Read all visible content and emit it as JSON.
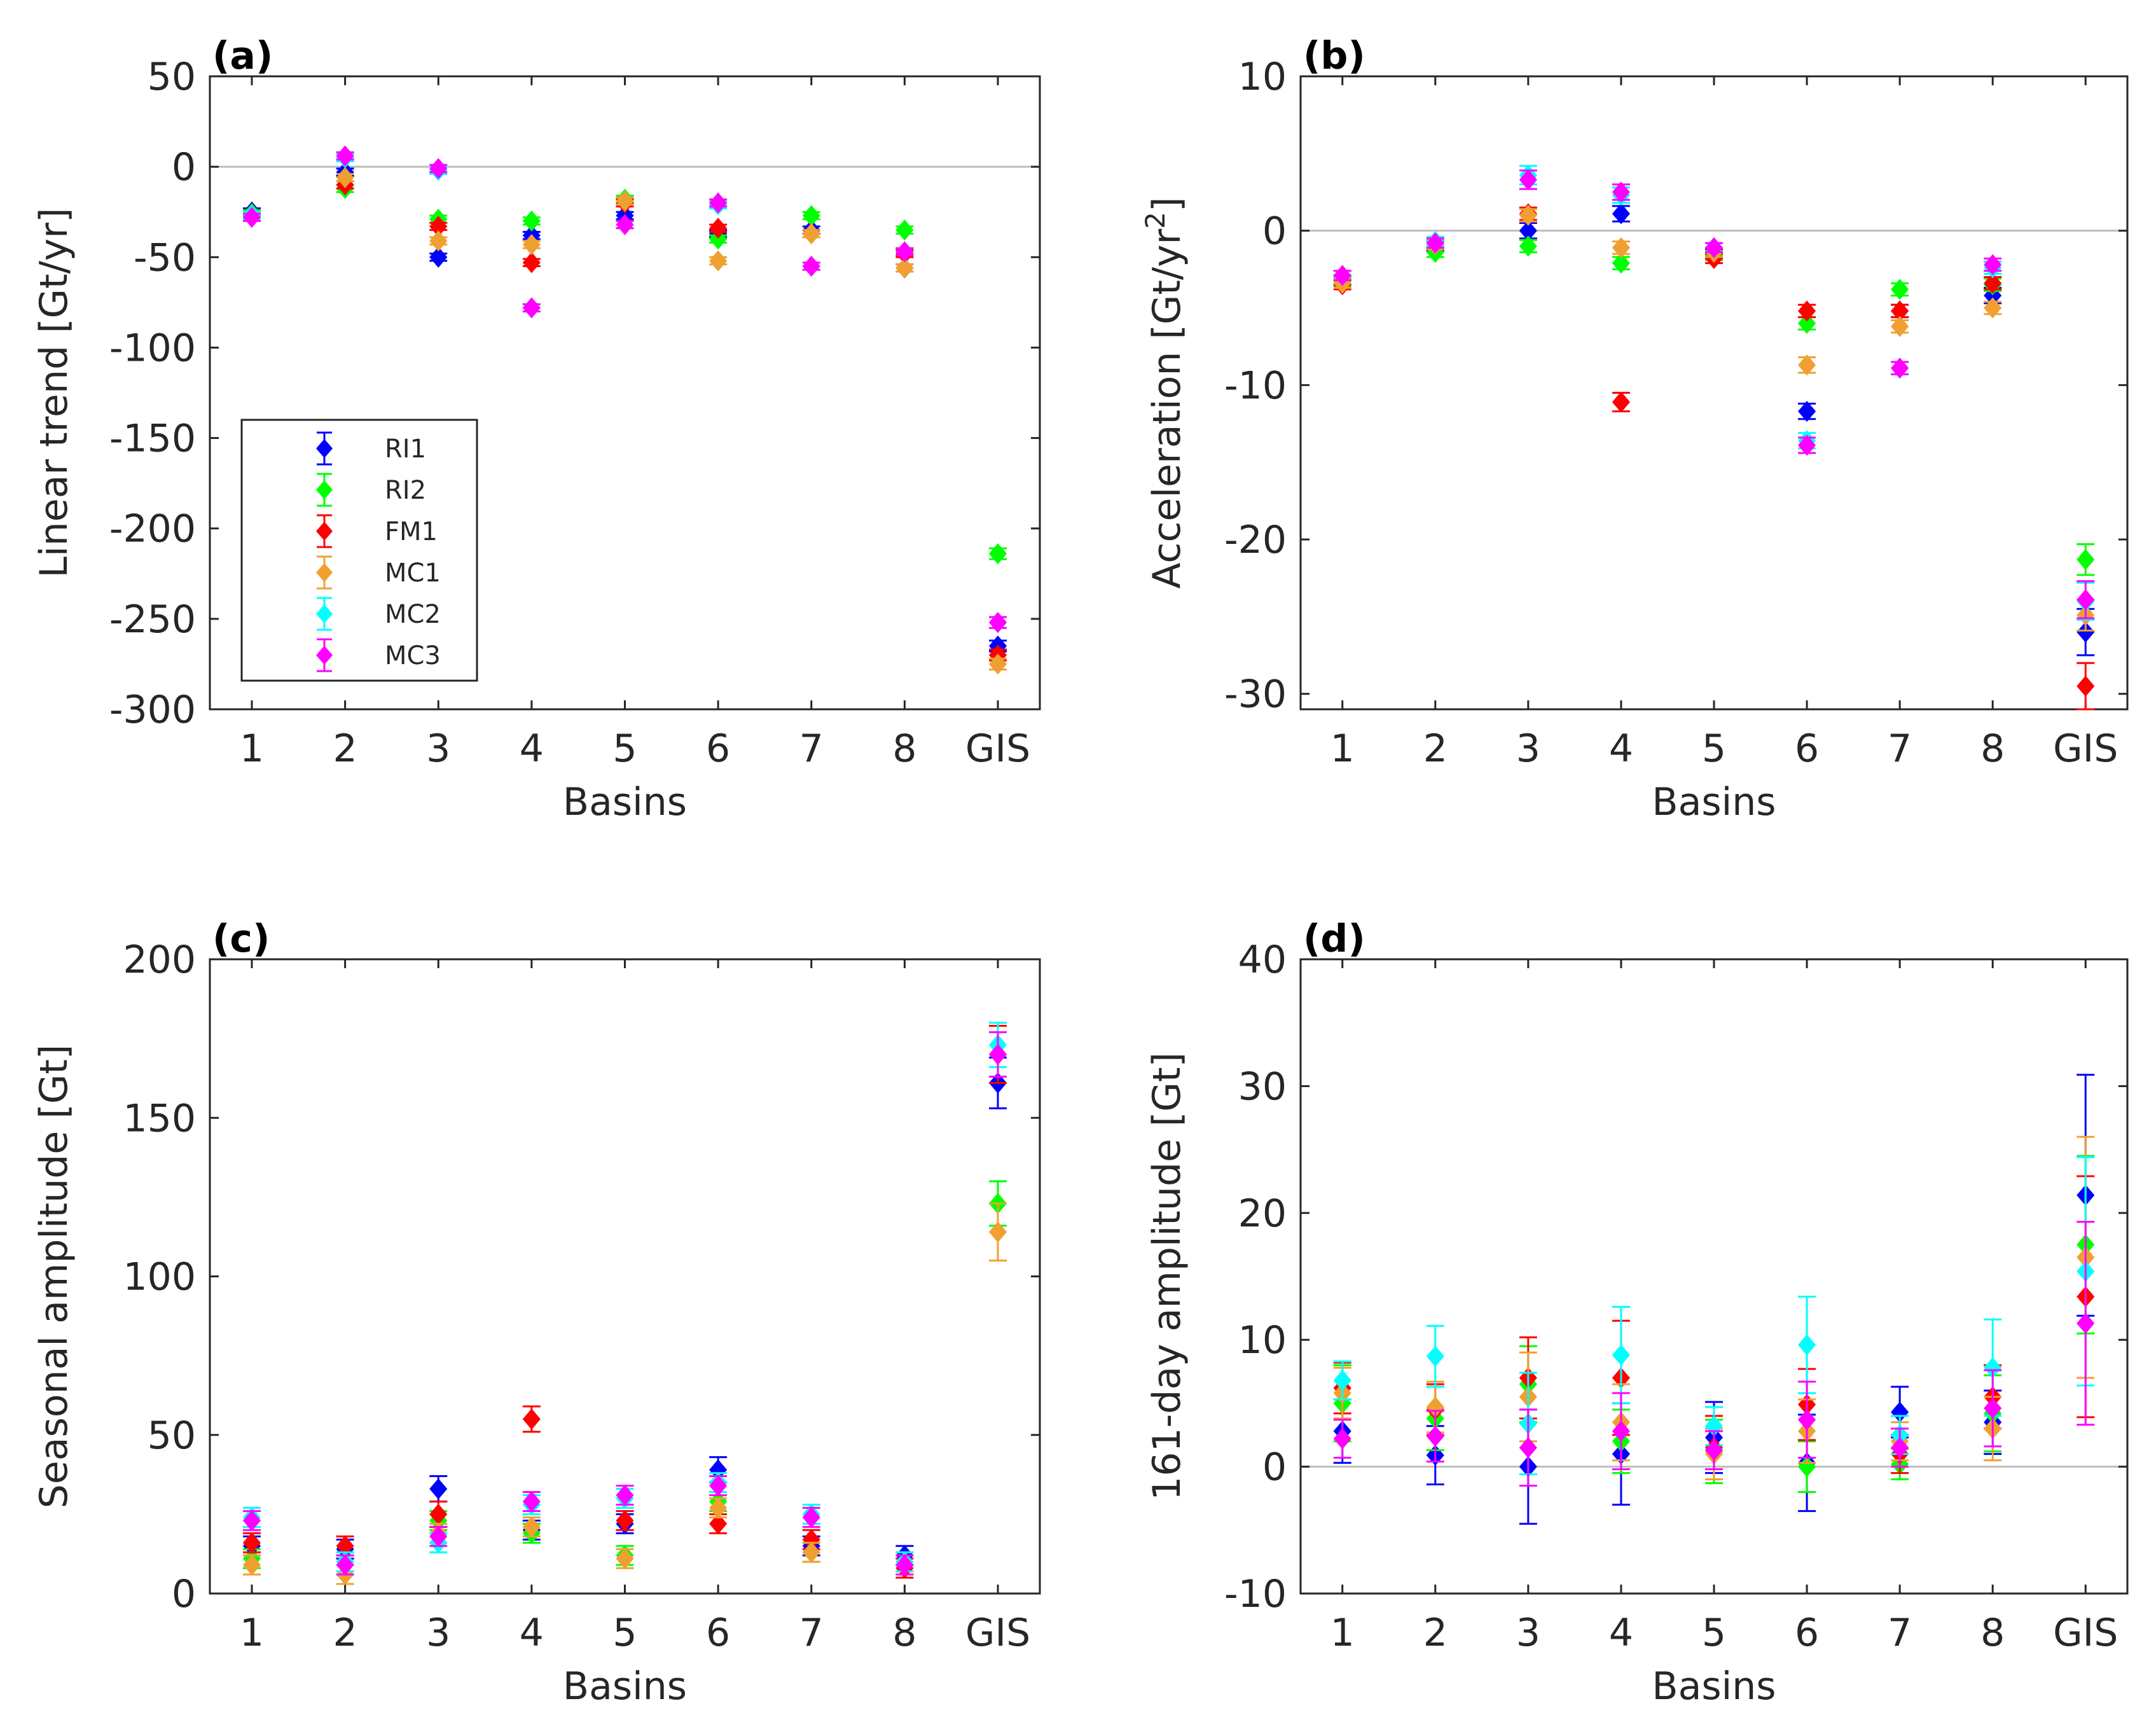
{
  "chart_data": [
    {
      "type": "scatter",
      "panel_label": "(a)",
      "title": "",
      "xlabel": "Basins",
      "ylabel": "Linear trend [Gt/yr]",
      "ylabel_sup": "",
      "categories": [
        "1",
        "2",
        "3",
        "4",
        "5",
        "6",
        "7",
        "8",
        "GIS"
      ],
      "ylim": [
        -300,
        50
      ],
      "yticks": [
        50,
        0,
        -50,
        -100,
        -150,
        -200,
        -250,
        -300
      ],
      "zero_line": true,
      "legend": {
        "placement": "lower-left",
        "entries": [
          "RI1",
          "RI2",
          "FM1",
          "MC1",
          "MC2",
          "MC3"
        ]
      },
      "series": [
        {
          "name": "RI1",
          "color": "#0000ff",
          "values": [
            -25,
            -3,
            -50,
            -38,
            -27,
            -37,
            -35,
            -56,
            -265
          ],
          "errors": [
            2,
            2,
            2,
            2,
            2,
            2,
            2,
            2,
            3
          ]
        },
        {
          "name": "RI2",
          "color": "#00ff00",
          "values": [
            -26,
            -12,
            -29,
            -30,
            -18,
            -40,
            -27,
            -35,
            -214
          ],
          "errors": [
            2,
            2,
            2,
            2,
            2,
            2,
            2,
            2,
            3
          ]
        },
        {
          "name": "FM1",
          "color": "#ff0000",
          "values": [
            -27,
            -10,
            -33,
            -53,
            -20,
            -34,
            -37,
            -48,
            -270
          ],
          "errors": [
            2,
            2,
            2,
            2,
            2,
            2,
            2,
            2,
            3
          ]
        },
        {
          "name": "MC1",
          "color": "#f0a030",
          "values": [
            -27,
            -6,
            -41,
            -43,
            -19,
            -52,
            -37,
            -56,
            -275
          ],
          "errors": [
            2,
            2,
            2,
            2,
            2,
            2,
            2,
            2,
            3
          ]
        },
        {
          "name": "MC2",
          "color": "#00ffff",
          "values": [
            -27,
            5,
            -2,
            -78,
            -32,
            -21,
            -55,
            -47,
            -252
          ],
          "errors": [
            2,
            2,
            2,
            2,
            2,
            2,
            2,
            2,
            3
          ]
        },
        {
          "name": "MC3",
          "color": "#ff00ff",
          "values": [
            -28,
            6,
            -1,
            -78,
            -32,
            -20,
            -55,
            -47,
            -252
          ],
          "errors": [
            2,
            2,
            2,
            2,
            2,
            2,
            2,
            2,
            3
          ]
        }
      ]
    },
    {
      "type": "scatter",
      "panel_label": "(b)",
      "title": "",
      "xlabel": "Basins",
      "ylabel": "Acceleration [Gt/yr",
      "ylabel_sup": "2",
      "ylabel_close": "]",
      "categories": [
        "1",
        "2",
        "3",
        "4",
        "5",
        "6",
        "7",
        "8",
        "GIS"
      ],
      "ylim": [
        -31,
        10
      ],
      "yticks": [
        10,
        0,
        -10,
        -20,
        -30
      ],
      "zero_line": true,
      "legend": null,
      "series": [
        {
          "name": "RI1",
          "color": "#0000ff",
          "values": [
            -3.2,
            -1.0,
            0.0,
            1.1,
            -1.5,
            -11.7,
            -5.2,
            -4.2,
            -26.0
          ],
          "errors": [
            0.3,
            0.3,
            0.5,
            0.5,
            0.3,
            0.5,
            0.4,
            0.5,
            1.5
          ]
        },
        {
          "name": "RI2",
          "color": "#00ff00",
          "values": [
            -3.3,
            -1.4,
            -1.0,
            -2.1,
            -1.6,
            -6.0,
            -3.8,
            -3.5,
            -21.3
          ],
          "errors": [
            0.3,
            0.3,
            0.4,
            0.4,
            0.3,
            0.4,
            0.4,
            0.4,
            1.0
          ]
        },
        {
          "name": "FM1",
          "color": "#ff0000",
          "values": [
            -3.5,
            -0.9,
            1.1,
            -11.1,
            -1.8,
            -5.2,
            -5.2,
            -3.4,
            -29.5
          ],
          "errors": [
            0.3,
            0.3,
            0.4,
            0.6,
            0.3,
            0.4,
            0.4,
            0.4,
            1.5
          ]
        },
        {
          "name": "MC1",
          "color": "#f0a030",
          "values": [
            -3.4,
            -0.9,
            1.0,
            -1.1,
            -1.4,
            -8.7,
            -6.2,
            -5.0,
            -24.9
          ],
          "errors": [
            0.3,
            0.3,
            0.4,
            0.4,
            0.3,
            0.5,
            0.4,
            0.4,
            1.0
          ]
        },
        {
          "name": "MC2",
          "color": "#00ffff",
          "values": [
            -2.9,
            -0.7,
            3.6,
            2.3,
            -1.1,
            -13.6,
            -8.9,
            -2.4,
            -24.0
          ],
          "errors": [
            0.3,
            0.3,
            0.6,
            0.5,
            0.3,
            0.5,
            0.4,
            0.4,
            1.2
          ]
        },
        {
          "name": "MC3",
          "color": "#ff00ff",
          "values": [
            -2.9,
            -0.8,
            3.3,
            2.5,
            -1.1,
            -13.9,
            -8.9,
            -2.2,
            -23.9
          ],
          "errors": [
            0.3,
            0.3,
            0.6,
            0.5,
            0.3,
            0.5,
            0.4,
            0.4,
            1.2
          ]
        }
      ]
    },
    {
      "type": "scatter",
      "panel_label": "(c)",
      "title": "",
      "xlabel": "Basins",
      "ylabel": "Seasonal amplitude [Gt]",
      "ylabel_sup": "",
      "categories": [
        "1",
        "2",
        "3",
        "4",
        "5",
        "6",
        "7",
        "8",
        "GIS"
      ],
      "ylim": [
        0,
        200
      ],
      "yticks": [
        200,
        150,
        100,
        50,
        0
      ],
      "zero_line": false,
      "legend": null,
      "series": [
        {
          "name": "RI1",
          "color": "#0000ff",
          "values": [
            15,
            14,
            33,
            20,
            22,
            39,
            15,
            12,
            161
          ],
          "errors": [
            3,
            3,
            4,
            3,
            3,
            4,
            3,
            3,
            8
          ]
        },
        {
          "name": "RI2",
          "color": "#00ff00",
          "values": [
            11,
            10,
            23,
            19,
            12,
            29,
            13,
            10,
            123
          ],
          "errors": [
            3,
            3,
            3,
            3,
            3,
            3,
            3,
            3,
            7
          ]
        },
        {
          "name": "FM1",
          "color": "#ff0000",
          "values": [
            16,
            15,
            25,
            55,
            23,
            22,
            17,
            8,
            170
          ],
          "errors": [
            3,
            3,
            4,
            4,
            3,
            3,
            3,
            3,
            9
          ]
        },
        {
          "name": "MC1",
          "color": "#f0a030",
          "values": [
            9,
            6,
            19,
            21,
            11,
            27,
            13,
            9,
            114
          ],
          "errors": [
            3,
            3,
            3,
            3,
            3,
            3,
            3,
            3,
            9
          ]
        },
        {
          "name": "MC2",
          "color": "#00ffff",
          "values": [
            24,
            10,
            16,
            28,
            30,
            35,
            25,
            10,
            173
          ],
          "errors": [
            3,
            3,
            3,
            3,
            3,
            3,
            3,
            3,
            7
          ]
        },
        {
          "name": "MC3",
          "color": "#ff00ff",
          "values": [
            23,
            9,
            18,
            29,
            31,
            34,
            24,
            9,
            170
          ],
          "errors": [
            3,
            3,
            3,
            3,
            3,
            3,
            3,
            3,
            7
          ]
        }
      ]
    },
    {
      "type": "scatter",
      "panel_label": "(d)",
      "title": "",
      "xlabel": "Basins",
      "ylabel": "161-day amplitude [Gt]",
      "ylabel_sup": "",
      "categories": [
        "1",
        "2",
        "3",
        "4",
        "5",
        "6",
        "7",
        "8",
        "GIS"
      ],
      "ylim": [
        -10,
        40
      ],
      "yticks": [
        40,
        30,
        20,
        10,
        0,
        -10
      ],
      "zero_line": true,
      "legend": null,
      "series": [
        {
          "name": "RI1",
          "color": "#0000ff",
          "values": [
            2.8,
            0.9,
            0.0,
            1.0,
            2.3,
            0.3,
            4.3,
            3.5,
            21.4
          ],
          "errors": [
            2.5,
            2.3,
            4.5,
            4.0,
            2.8,
            3.8,
            2.0,
            2.5,
            9.5
          ]
        },
        {
          "name": "RI2",
          "color": "#00ff00",
          "values": [
            5.0,
            3.8,
            6.5,
            2.0,
            1.2,
            0.0,
            0.2,
            4.2,
            17.5
          ],
          "errors": [
            3.0,
            2.5,
            3.0,
            2.5,
            2.5,
            2.0,
            1.2,
            3.0,
            7.0
          ]
        },
        {
          "name": "FM1",
          "color": "#ff0000",
          "values": [
            6.2,
            4.5,
            7.0,
            7.0,
            1.5,
            4.9,
            1.0,
            5.5,
            13.4
          ],
          "errors": [
            2.0,
            2.0,
            3.2,
            4.5,
            2.5,
            2.8,
            1.5,
            2.5,
            9.5
          ]
        },
        {
          "name": "MC1",
          "color": "#f0a030",
          "values": [
            5.8,
            4.7,
            5.5,
            3.5,
            1.0,
            2.8,
            2.0,
            3.0,
            16.5
          ],
          "errors": [
            2.0,
            2.0,
            3.5,
            3.0,
            2.0,
            2.5,
            1.5,
            2.5,
            9.5
          ]
        },
        {
          "name": "MC2",
          "color": "#00ffff",
          "values": [
            6.8,
            8.7,
            3.4,
            8.8,
            3.2,
            9.6,
            2.5,
            7.8,
            15.4
          ],
          "errors": [
            1.5,
            2.4,
            4.0,
            3.8,
            1.5,
            3.8,
            1.5,
            3.8,
            9.0
          ]
        },
        {
          "name": "MC3",
          "color": "#ff00ff",
          "values": [
            2.2,
            2.4,
            1.5,
            2.8,
            1.3,
            3.7,
            1.5,
            4.6,
            11.3
          ],
          "errors": [
            1.5,
            2.0,
            3.0,
            3.0,
            1.5,
            3.0,
            1.5,
            3.0,
            8.0
          ]
        }
      ]
    }
  ]
}
